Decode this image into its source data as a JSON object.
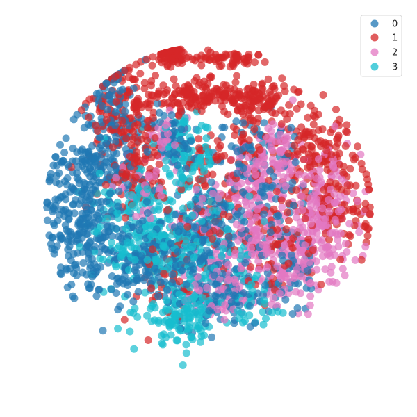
{
  "chart_data": {
    "type": "scatter",
    "title": "",
    "xlabel": "",
    "ylabel": "",
    "axes_visible": false,
    "grid": false,
    "legend_position": "top-right",
    "xlim": [
      -100,
      100
    ],
    "ylim": [
      -100,
      100
    ],
    "series": [
      {
        "name": "0",
        "color": "#1f77b4",
        "clusters": [
          {
            "cx": -68,
            "cy": -6,
            "sx": 11,
            "sy": 22,
            "n": 260
          },
          {
            "cx": -55,
            "cy": 30,
            "sx": 14,
            "sy": 14,
            "n": 140
          },
          {
            "cx": -40,
            "cy": -30,
            "sx": 10,
            "sy": 10,
            "n": 90
          },
          {
            "cx": -16,
            "cy": -28,
            "sx": 12,
            "sy": 12,
            "n": 130
          },
          {
            "cx": 0,
            "cy": -10,
            "sx": 14,
            "sy": 12,
            "n": 110
          },
          {
            "cx": 10,
            "cy": -48,
            "sx": 12,
            "sy": 9,
            "n": 90
          },
          {
            "cx": -20,
            "cy": 38,
            "sx": 6,
            "sy": 8,
            "n": 70
          },
          {
            "cx": -52,
            "cy": 62,
            "sx": 5,
            "sy": 12,
            "n": 50
          },
          {
            "cx": 20,
            "cy": 30,
            "sx": 10,
            "sy": 10,
            "n": 50
          },
          {
            "cx": 42,
            "cy": -32,
            "sx": 10,
            "sy": 14,
            "n": 60
          },
          {
            "cx": 40,
            "cy": 22,
            "sx": 10,
            "sy": 16,
            "n": 40
          }
        ]
      },
      {
        "name": "1",
        "color": "#d62728",
        "clusters": [
          {
            "cx": -20,
            "cy": 84,
            "sx": 4,
            "sy": 3,
            "n": 60
          },
          {
            "cx": 8,
            "cy": 82,
            "sx": 14,
            "sy": 2,
            "n": 70
          },
          {
            "cx": -2,
            "cy": 62,
            "sx": 16,
            "sy": 4,
            "n": 160
          },
          {
            "cx": -45,
            "cy": 52,
            "sx": 10,
            "sy": 16,
            "n": 160
          },
          {
            "cx": 28,
            "cy": 56,
            "sx": 8,
            "sy": 6,
            "n": 80
          },
          {
            "cx": 58,
            "cy": 35,
            "sx": 10,
            "sy": 12,
            "n": 110
          },
          {
            "cx": 70,
            "cy": 5,
            "sx": 12,
            "sy": 14,
            "n": 110
          },
          {
            "cx": 12,
            "cy": 25,
            "sx": 14,
            "sy": 14,
            "n": 80
          },
          {
            "cx": 8,
            "cy": -8,
            "sx": 16,
            "sy": 12,
            "n": 70
          },
          {
            "cx": 40,
            "cy": -18,
            "sx": 12,
            "sy": 14,
            "n": 60
          },
          {
            "cx": -25,
            "cy": -40,
            "sx": 12,
            "sy": 12,
            "n": 40
          },
          {
            "cx": -40,
            "cy": 18,
            "sx": 10,
            "sy": 10,
            "n": 60
          }
        ]
      },
      {
        "name": "2",
        "color": "#e377c2",
        "clusters": [
          {
            "cx": 25,
            "cy": 12,
            "sx": 8,
            "sy": 10,
            "n": 90
          },
          {
            "cx": 38,
            "cy": 30,
            "sx": 6,
            "sy": 10,
            "n": 70
          },
          {
            "cx": 62,
            "cy": 0,
            "sx": 10,
            "sy": 16,
            "n": 150
          },
          {
            "cx": 48,
            "cy": -28,
            "sx": 12,
            "sy": 12,
            "n": 140
          },
          {
            "cx": 25,
            "cy": -20,
            "sx": 10,
            "sy": 10,
            "n": 70
          },
          {
            "cx": 5,
            "cy": -45,
            "sx": 12,
            "sy": 10,
            "n": 70
          },
          {
            "cx": -22,
            "cy": 38,
            "sx": 5,
            "sy": 6,
            "n": 40
          },
          {
            "cx": -35,
            "cy": 12,
            "sx": 8,
            "sy": 8,
            "n": 40
          },
          {
            "cx": -5,
            "cy": -10,
            "sx": 10,
            "sy": 10,
            "n": 40
          }
        ]
      },
      {
        "name": "3",
        "color": "#17becf",
        "clusters": [
          {
            "cx": -12,
            "cy": 28,
            "sx": 8,
            "sy": 10,
            "n": 110
          },
          {
            "cx": -25,
            "cy": -20,
            "sx": 14,
            "sy": 8,
            "n": 130
          },
          {
            "cx": -16,
            "cy": -58,
            "sx": 10,
            "sy": 8,
            "n": 130
          },
          {
            "cx": -48,
            "cy": -10,
            "sx": 10,
            "sy": 16,
            "n": 60
          },
          {
            "cx": -35,
            "cy": 4,
            "sx": 8,
            "sy": 6,
            "n": 50
          },
          {
            "cx": 0,
            "cy": -35,
            "sx": 12,
            "sy": 12,
            "n": 70
          },
          {
            "cx": 20,
            "cy": -45,
            "sx": 10,
            "sy": 10,
            "n": 40
          },
          {
            "cx": 5,
            "cy": 2,
            "sx": 10,
            "sy": 8,
            "n": 30
          }
        ]
      }
    ],
    "legend": [
      "0",
      "1",
      "2",
      "3"
    ]
  }
}
